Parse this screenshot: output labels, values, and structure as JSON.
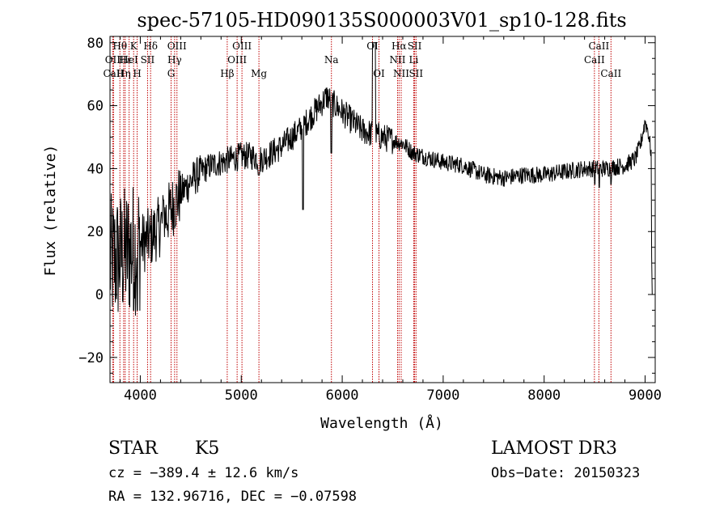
{
  "chart_data": {
    "type": "line",
    "title": "spec-57105-HD090135S000003V01_sp10-128.fits",
    "xlabel": "Wavelength (Å)",
    "ylabel": "Flux (relative)",
    "xlim": [
      3700,
      9100
    ],
    "ylim": [
      -28,
      82
    ],
    "xticks": [
      4000,
      5000,
      6000,
      7000,
      8000,
      9000
    ],
    "xtick_labels": [
      "4000",
      "5000",
      "6000",
      "7000",
      "8000",
      "9000"
    ],
    "yticks": [
      -20,
      0,
      20,
      40,
      60,
      80
    ],
    "ytick_labels": [
      "−20",
      "0",
      "20",
      "40",
      "60",
      "80"
    ],
    "grid": false,
    "legend": "none",
    "series": [
      {
        "name": "flux",
        "continuum": [
          [
            3700,
            10
          ],
          [
            3800,
            12
          ],
          [
            3900,
            14
          ],
          [
            4000,
            16
          ],
          [
            4100,
            18
          ],
          [
            4200,
            22
          ],
          [
            4300,
            27
          ],
          [
            4400,
            32
          ],
          [
            4500,
            36
          ],
          [
            4600,
            39
          ],
          [
            4700,
            41
          ],
          [
            4800,
            42
          ],
          [
            4900,
            43
          ],
          [
            5000,
            44
          ],
          [
            5100,
            44
          ],
          [
            5200,
            43
          ],
          [
            5300,
            45
          ],
          [
            5400,
            47
          ],
          [
            5500,
            50
          ],
          [
            5600,
            53
          ],
          [
            5700,
            57
          ],
          [
            5800,
            61
          ],
          [
            5850,
            63
          ],
          [
            5900,
            61
          ],
          [
            6000,
            58
          ],
          [
            6100,
            55
          ],
          [
            6200,
            52
          ],
          [
            6300,
            51
          ],
          [
            6400,
            50
          ],
          [
            6500,
            49
          ],
          [
            6600,
            48
          ],
          [
            6700,
            45
          ],
          [
            6800,
            44
          ],
          [
            6900,
            43
          ],
          [
            7000,
            42
          ],
          [
            7200,
            41
          ],
          [
            7400,
            38
          ],
          [
            7600,
            37
          ],
          [
            7800,
            38
          ],
          [
            8000,
            38
          ],
          [
            8200,
            39
          ],
          [
            8400,
            40
          ],
          [
            8600,
            40
          ],
          [
            8800,
            41
          ],
          [
            8900,
            43
          ],
          [
            8950,
            47
          ],
          [
            9000,
            55
          ],
          [
            9030,
            52
          ],
          [
            9060,
            45
          ]
        ],
        "features": [
          [
            6300,
            6330,
            80
          ],
          [
            5608,
            5618,
            27
          ],
          [
            8498,
            8504,
            35
          ],
          [
            8542,
            8548,
            34
          ],
          [
            8660,
            8666,
            35
          ],
          [
            5888,
            5896,
            45
          ],
          [
            5165,
            5180,
            38
          ],
          [
            4225,
            4235,
            30
          ],
          [
            3968,
            3974,
            -5
          ],
          [
            3931,
            3937,
            -5
          ]
        ]
      }
    ],
    "line_labels": [
      {
        "text": "Hθ",
        "wl": 3798,
        "row": 0
      },
      {
        "text": "OII",
        "wl": 3727,
        "row": 1
      },
      {
        "text": "CaII",
        "wl": 3735,
        "row": 2
      },
      {
        "text": "K",
        "wl": 3934,
        "row": 0
      },
      {
        "text": "Hε",
        "wl": 3850,
        "row": 1
      },
      {
        "text": "HeI",
        "wl": 3889,
        "row": 1
      },
      {
        "text": "Hη",
        "wl": 3835,
        "row": 2
      },
      {
        "text": "SII",
        "wl": 4072,
        "row": 1
      },
      {
        "text": "H",
        "wl": 3969,
        "row": 2
      },
      {
        "text": "Hδ",
        "wl": 4102,
        "row": 0
      },
      {
        "text": "OIII",
        "wl": 4363,
        "row": 0
      },
      {
        "text": "Hγ",
        "wl": 4340,
        "row": 1
      },
      {
        "text": "G",
        "wl": 4305,
        "row": 2
      },
      {
        "text": "OIII",
        "wl": 5007,
        "row": 0
      },
      {
        "text": "OIII",
        "wl": 4959,
        "row": 1
      },
      {
        "text": "Hβ",
        "wl": 4861,
        "row": 2
      },
      {
        "text": "Mg",
        "wl": 5175,
        "row": 2
      },
      {
        "text": "Na",
        "wl": 5893,
        "row": 1
      },
      {
        "text": "OI",
        "wl": 6300,
        "row": 0
      },
      {
        "text": "OI",
        "wl": 6364,
        "row": 2
      },
      {
        "text": "Hα",
        "wl": 6563,
        "row": 0
      },
      {
        "text": "SII",
        "wl": 6717,
        "row": 0
      },
      {
        "text": "NII",
        "wl": 6548,
        "row": 1
      },
      {
        "text": "Li",
        "wl": 6708,
        "row": 1
      },
      {
        "text": "NII",
        "wl": 6584,
        "row": 2
      },
      {
        "text": "SII",
        "wl": 6731,
        "row": 2
      },
      {
        "text": "CaII",
        "wl": 8542,
        "row": 0
      },
      {
        "text": "CaII",
        "wl": 8498,
        "row": 1
      },
      {
        "text": "CaII",
        "wl": 8662,
        "row": 2
      }
    ],
    "line_markers": [
      3727,
      3735,
      3798,
      3835,
      3850,
      3889,
      3934,
      3969,
      4072,
      4102,
      4305,
      4340,
      4363,
      4861,
      4959,
      5007,
      5175,
      5893,
      6300,
      6364,
      6548,
      6563,
      6584,
      6708,
      6717,
      6731,
      8498,
      8542,
      8662
    ]
  },
  "info": {
    "class": "STAR",
    "subclass": "K5",
    "cz": "cz = −389.4 ± 12.6 km/s",
    "coords": "RA = 132.96716, DEC =  −0.07598",
    "survey": "LAMOST DR3",
    "obs_date": "Obs−Date: 20150323"
  },
  "colors": {
    "axis": "#000000",
    "spectrum": "#000000",
    "marker": "#c00000"
  }
}
